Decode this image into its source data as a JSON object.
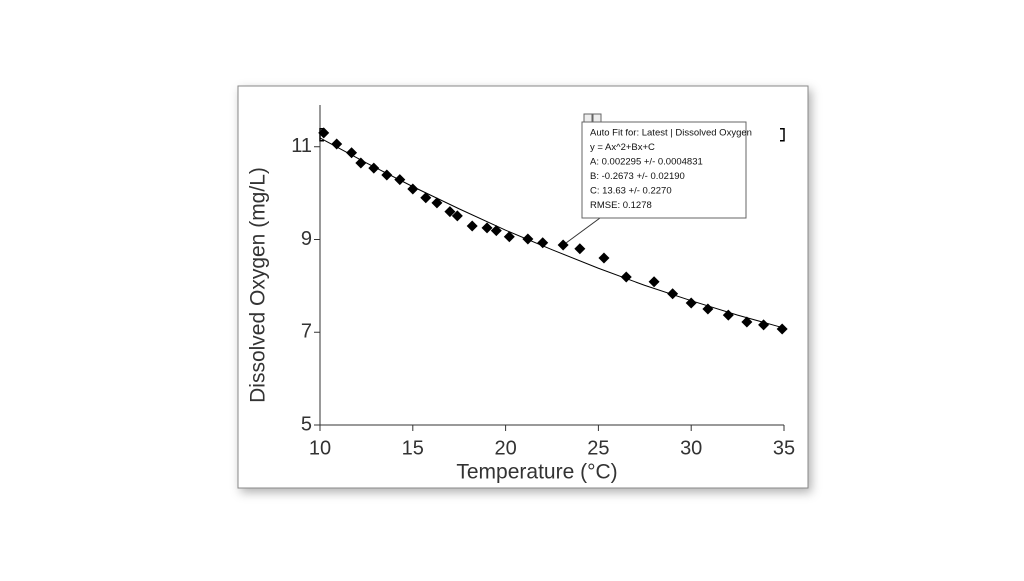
{
  "chart_data": {
    "type": "scatter",
    "xlabel": "Temperature (°C)",
    "ylabel": "Dissolved Oxygen (mg/L)",
    "xlim": [
      10,
      35
    ],
    "xticks": [
      10,
      15,
      20,
      25,
      30,
      35
    ],
    "ylim": [
      5,
      11.9
    ],
    "yticks": [
      5,
      7,
      9,
      11
    ],
    "series": [
      {
        "color": "#000000",
        "marker": "diamond",
        "x": [
          10.2,
          10.9,
          11.7,
          12.2,
          12.9,
          13.6,
          14.3,
          15.0,
          15.7,
          16.3,
          17.0,
          17.4,
          18.2,
          19.0,
          19.5,
          20.2,
          21.2,
          22.0,
          23.1,
          24.0,
          25.3,
          26.5,
          28.0,
          29.0,
          30.0,
          30.9,
          32.0,
          33.0,
          33.9,
          34.9
        ],
        "values": [
          11.3,
          11.06,
          10.87,
          10.65,
          10.54,
          10.39,
          10.29,
          10.09,
          9.9,
          9.79,
          9.6,
          9.51,
          9.29,
          9.25,
          9.19,
          9.06,
          9.01,
          8.93,
          8.88,
          8.8,
          8.6,
          8.19,
          8.09,
          7.83,
          7.63,
          7.5,
          7.37,
          7.22,
          7.16,
          7.07
        ]
      },
      {
        "color": "#000000",
        "marker": "line",
        "x": [
          10,
          12.5,
          15,
          17.5,
          20,
          22.5,
          25,
          27.5,
          30,
          32.5,
          35
        ],
        "values": [
          11.19,
          10.65,
          10.14,
          9.66,
          9.2,
          8.78,
          8.38,
          8.01,
          7.68,
          7.37,
          7.09
        ]
      }
    ],
    "annotation": {
      "lines": [
        "Auto Fit for: Latest | Dissolved Oxygen",
        "y = Ax^2+Bx+C",
        "A: 0.002295 +/- 0.0004831",
        "B: -0.2673 +/- 0.02190",
        "C: 13.63 +/- 0.2270",
        "RMSE: 0.1278"
      ]
    }
  }
}
